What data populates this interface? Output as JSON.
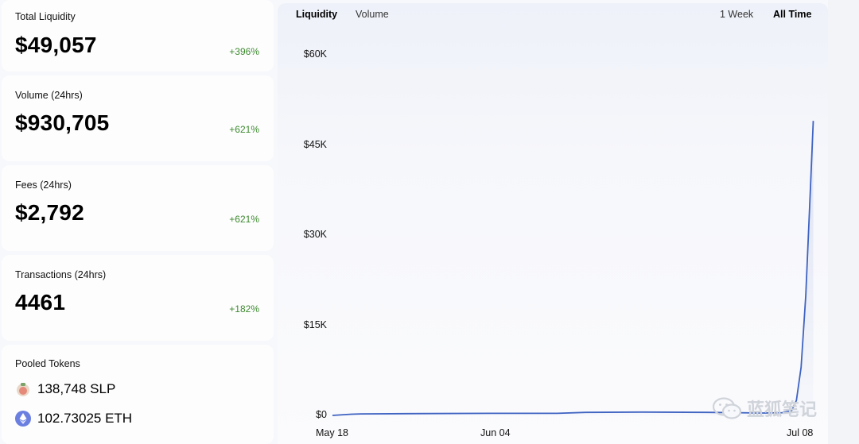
{
  "stats": [
    {
      "label": "Total Liquidity",
      "value": "$49,057",
      "change": "+396%"
    },
    {
      "label": "Volume (24hrs)",
      "value": "$930,705",
      "change": "+621%"
    },
    {
      "label": "Fees (24hrs)",
      "value": "$2,792",
      "change": "+621%"
    },
    {
      "label": "Transactions (24hrs)",
      "value": "4461",
      "change": "+182%"
    }
  ],
  "pooled": {
    "title": "Pooled Tokens",
    "tokens": [
      {
        "amount": "138,748 SLP",
        "icon": "slp-token-icon"
      },
      {
        "amount": "102.73025 ETH",
        "icon": "eth-token-icon"
      }
    ]
  },
  "chart_tabs": {
    "liquidity": "Liquidity",
    "volume": "Volume",
    "week": "1 Week",
    "all_time": "All Time"
  },
  "watermark": "蓝狐笔记",
  "colors": {
    "line": "#3f63c2",
    "positive": "#3d8a2e"
  },
  "chart_data": {
    "type": "line",
    "title": "",
    "xlabel": "",
    "ylabel": "",
    "ylim": [
      0,
      60000
    ],
    "y_ticks": [
      "$0",
      "$15K",
      "$30K",
      "$45K",
      "$60K"
    ],
    "y_tick_values": [
      0,
      15000,
      30000,
      45000,
      60000
    ],
    "x_ticks": [
      "May 18",
      "Jun 04",
      "Jul 08"
    ],
    "x_tick_days": [
      0,
      17,
      51
    ],
    "series": [
      {
        "days": [
          0,
          2,
          3,
          10,
          17,
          24,
          27,
          33,
          40,
          46,
          48,
          49,
          49.5,
          50,
          50.5,
          51,
          51.3
        ],
        "values": [
          0,
          200,
          250,
          300,
          350,
          350,
          500,
          550,
          500,
          400,
          450,
          800,
          2500,
          8000,
          20000,
          38000,
          49000
        ]
      }
    ]
  }
}
